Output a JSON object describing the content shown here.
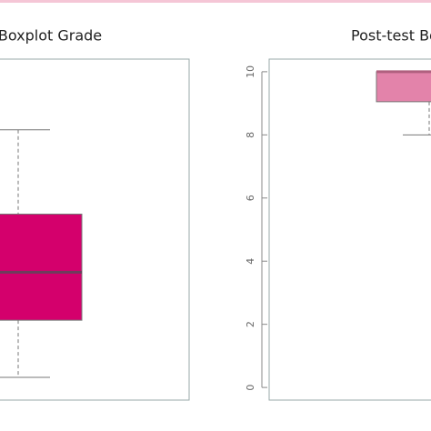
{
  "chart_data": [
    {
      "type": "boxplot",
      "title": "Boxplot Grade",
      "color": "#d4006c",
      "median_color": "#6e3d5c",
      "ylim": [
        -0.4,
        10.4
      ],
      "low": 0.32,
      "q1": 2.13,
      "median": 3.65,
      "q3": 5.49,
      "high": 8.16
    },
    {
      "type": "boxplot",
      "title": "Post-test Bo",
      "color": "#e383aa",
      "median_color": "#b0607f",
      "ylim": [
        -0.4,
        10.4
      ],
      "yticks": [
        0,
        2,
        4,
        6,
        8,
        10
      ],
      "low": 8,
      "q1": 9.05,
      "median": 10,
      "q3": 10,
      "high": 10
    }
  ]
}
